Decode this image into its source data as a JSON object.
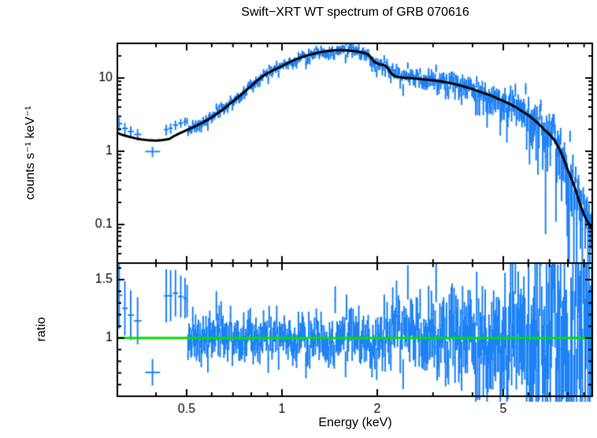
{
  "chart_data": {
    "type": "scatter",
    "title": "Swift−XRT WT spectrum of GRB 070616",
    "xlabel": "Energy (keV)",
    "xscale": "log",
    "xlim": [
      0.304,
      9.55
    ],
    "x_major_ticks": [
      0.5,
      1,
      2,
      5
    ],
    "x_major_labels": [
      "0.5",
      "1",
      "2",
      "5"
    ],
    "x_minor_ticks": [
      0.4,
      0.6,
      0.7,
      0.8,
      0.9,
      3,
      4,
      6,
      7,
      8,
      9
    ],
    "colors": {
      "data": "#1E82F5",
      "model": "#000000",
      "reference": "#00E000",
      "axes": "#000000",
      "background": "#FFFFFF"
    },
    "noise_seed": 7,
    "panels": [
      {
        "name": "spectrum",
        "ylabel": "counts s⁻¹ keV⁻¹",
        "yscale": "log",
        "ylim": [
          0.0297,
          29.7
        ],
        "y_major_ticks": [
          10,
          1,
          0.1
        ],
        "y_major_labels": [
          "10",
          "1",
          "0.1"
        ],
        "y_minor_ticks": [
          0.04,
          0.05,
          0.06,
          0.07,
          0.08,
          0.09,
          0.2,
          0.3,
          0.4,
          0.5,
          0.6,
          0.7,
          0.8,
          0.9,
          2,
          3,
          4,
          5,
          6,
          7,
          8,
          9,
          20
        ],
        "model_series": {
          "name": "folded-model",
          "points": [
            [
              0.3,
              1.8
            ],
            [
              0.315,
              1.66
            ],
            [
              0.33,
              1.57
            ],
            [
              0.345,
              1.5
            ],
            [
              0.36,
              1.45
            ],
            [
              0.38,
              1.41
            ],
            [
              0.4,
              1.4
            ],
            [
              0.42,
              1.42
            ],
            [
              0.44,
              1.47
            ],
            [
              0.455,
              1.6
            ],
            [
              0.47,
              1.72
            ],
            [
              0.485,
              1.83
            ],
            [
              0.5,
              1.95
            ],
            [
              0.525,
              2.13
            ],
            [
              0.55,
              2.35
            ],
            [
              0.575,
              2.6
            ],
            [
              0.6,
              2.9
            ],
            [
              0.625,
              3.28
            ],
            [
              0.65,
              3.7
            ],
            [
              0.675,
              4.22
            ],
            [
              0.7,
              4.8
            ],
            [
              0.725,
              5.42
            ],
            [
              0.75,
              6.1
            ],
            [
              0.775,
              6.9
            ],
            [
              0.8,
              7.8
            ],
            [
              0.825,
              8.8
            ],
            [
              0.85,
              9.8
            ],
            [
              0.875,
              10.7
            ],
            [
              0.9,
              11.6
            ],
            [
              0.95,
              13.1
            ],
            [
              1.0,
              14.5
            ],
            [
              1.05,
              16.2
            ],
            [
              1.1,
              17.8
            ],
            [
              1.15,
              19.1
            ],
            [
              1.2,
              20.3
            ],
            [
              1.25,
              21.3
            ],
            [
              1.3,
              22.2
            ],
            [
              1.35,
              22.9
            ],
            [
              1.4,
              23.4
            ],
            [
              1.45,
              23.8
            ],
            [
              1.5,
              24.0
            ],
            [
              1.55,
              24.0
            ],
            [
              1.6,
              23.8
            ],
            [
              1.65,
              23.5
            ],
            [
              1.7,
              23.2
            ],
            [
              1.75,
              22.8
            ],
            [
              1.8,
              22.2
            ],
            [
              1.84,
              21.6
            ],
            [
              1.88,
              20.6
            ],
            [
              1.92,
              18.6
            ],
            [
              1.96,
              16.6
            ],
            [
              2.0,
              15.8
            ],
            [
              2.05,
              15.3
            ],
            [
              2.1,
              15.0
            ],
            [
              2.14,
              14.2
            ],
            [
              2.18,
              12.8
            ],
            [
              2.22,
              11.4
            ],
            [
              2.26,
              10.7
            ],
            [
              2.32,
              10.35
            ],
            [
              2.4,
              10.15
            ],
            [
              2.5,
              10.0
            ],
            [
              2.6,
              9.85
            ],
            [
              2.75,
              9.65
            ],
            [
              2.9,
              9.45
            ],
            [
              3.0,
              9.3
            ],
            [
              3.2,
              8.95
            ],
            [
              3.4,
              8.5
            ],
            [
              3.6,
              8.05
            ],
            [
              3.8,
              7.55
            ],
            [
              4.0,
              7.05
            ],
            [
              4.2,
              6.55
            ],
            [
              4.4,
              6.1
            ],
            [
              4.6,
              5.7
            ],
            [
              4.8,
              5.25
            ],
            [
              5.0,
              4.85
            ],
            [
              5.25,
              4.4
            ],
            [
              5.5,
              3.95
            ],
            [
              5.75,
              3.5
            ],
            [
              6.0,
              3.1
            ],
            [
              6.25,
              2.7
            ],
            [
              6.5,
              2.32
            ],
            [
              6.75,
              1.95
            ],
            [
              7.0,
              1.7
            ],
            [
              7.25,
              1.42
            ],
            [
              7.5,
              1.1
            ],
            [
              7.75,
              0.8
            ],
            [
              8.0,
              0.55
            ],
            [
              8.25,
              0.4
            ],
            [
              8.5,
              0.28
            ],
            [
              8.75,
              0.185
            ],
            [
              9.0,
              0.135
            ],
            [
              9.2,
              0.112
            ],
            [
              9.4,
              0.096
            ],
            [
              9.55,
              0.088
            ]
          ]
        },
        "data_series": {
          "name": "observed-spectrum",
          "explicit_points": [
            {
              "e_lo": 0.3,
              "e": 0.306,
              "e_hi": 0.313,
              "v": 2.38,
              "err": 0.5
            },
            {
              "e_lo": 0.313,
              "e": 0.319,
              "e_hi": 0.326,
              "v": 2.05,
              "err": 0.38
            },
            {
              "e_lo": 0.326,
              "e": 0.333,
              "e_hi": 0.341,
              "v": 1.86,
              "err": 0.33
            },
            {
              "e_lo": 0.341,
              "e": 0.35,
              "e_hi": 0.36,
              "v": 1.7,
              "err": 0.3
            },
            {
              "e_lo": 0.37,
              "e": 0.39,
              "e_hi": 0.412,
              "v": 0.99,
              "err": 0.16
            },
            {
              "e_lo": 0.424,
              "e": 0.431,
              "e_hi": 0.438,
              "v": 1.97,
              "err": 0.33
            },
            {
              "e_lo": 0.438,
              "e": 0.445,
              "e_hi": 0.452,
              "v": 2.06,
              "err": 0.33
            },
            {
              "e_lo": 0.452,
              "e": 0.461,
              "e_hi": 0.47,
              "v": 2.28,
              "err": 0.33
            },
            {
              "e_lo": 0.47,
              "e": 0.479,
              "e_hi": 0.488,
              "v": 2.42,
              "err": 0.32
            },
            {
              "e_lo": 0.488,
              "e": 0.494,
              "e_hi": 0.5,
              "v": 2.55,
              "err": 0.33
            }
          ],
          "synthetic_bins": {
            "e_start": 0.5,
            "e_end": 9.55,
            "count": 430,
            "sigma_profile": [
              [
                0.5,
                0.1
              ],
              [
                1.0,
                0.085
              ],
              [
                1.5,
                0.095
              ],
              [
                2.0,
                0.11
              ],
              [
                2.5,
                0.13
              ],
              [
                3.0,
                0.15
              ],
              [
                4.0,
                0.19
              ],
              [
                5.0,
                0.24
              ],
              [
                6.0,
                0.31
              ],
              [
                7.0,
                0.38
              ],
              [
                8.0,
                0.45
              ],
              [
                9.6,
                0.52
              ]
            ]
          }
        }
      },
      {
        "name": "ratio",
        "ylabel": "ratio",
        "yscale": "linear",
        "ylim": [
          0.5,
          1.642
        ],
        "y_major_ticks": [
          1.5,
          1
        ],
        "y_major_labels": [
          "1.5",
          "1"
        ],
        "y_minor_ticks": [
          0.6,
          0.7,
          0.8,
          0.9,
          1.1,
          1.2,
          1.3,
          1.4,
          1.6
        ],
        "reference_line": {
          "y": 1
        }
      }
    ]
  }
}
